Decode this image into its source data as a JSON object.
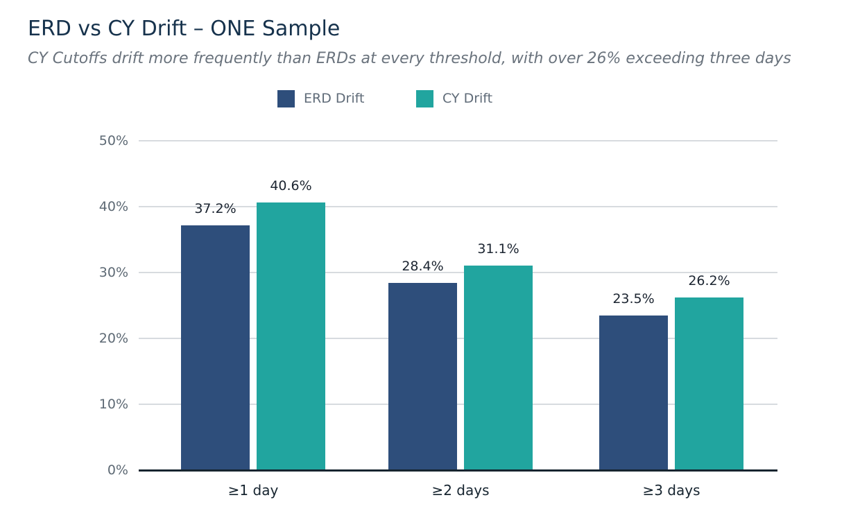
{
  "header": {
    "title": "ERD vs CY Drift – ONE Sample",
    "subtitle": "CY Cutoffs drift more frequently than ERDs at every threshold, with over 26% exceeding three days"
  },
  "chart_data": {
    "type": "bar",
    "title": "ERD vs CY Drift – ONE Sample",
    "subtitle": "CY Cutoffs drift more frequently than ERDs at every threshold, with over 26% exceeding three days",
    "categories": [
      "≥1 day",
      "≥2 days",
      "≥3 days"
    ],
    "series": [
      {
        "name": "ERD Drift",
        "color": "#2e4e7b",
        "values": [
          37.2,
          28.4,
          23.5
        ]
      },
      {
        "name": "CY Drift",
        "color": "#21a59f",
        "values": [
          40.6,
          31.1,
          26.2
        ]
      }
    ],
    "value_label_format": "percent_one_decimal",
    "xlabel": "",
    "ylabel": "",
    "ylim": [
      0,
      50
    ],
    "yticks": [
      0,
      10,
      20,
      30,
      40,
      50
    ],
    "ytick_labels": [
      "0%",
      "10%",
      "20%",
      "30%",
      "40%",
      "50%"
    ],
    "grid": true,
    "legend_position": "top-center"
  },
  "colors": {
    "background": "#ffffff",
    "title_text": "#16324c",
    "subtitle_text": "#6a737d",
    "erd_bar": "#2e4e7b",
    "cy_bar": "#21a59f",
    "gridline": "#d7dbdf",
    "axis_line": "#16242f",
    "tick_label": "#5d6974",
    "category_label": "#16242f",
    "value_label": "#1b2430",
    "legend_label": "#5f6b78"
  }
}
